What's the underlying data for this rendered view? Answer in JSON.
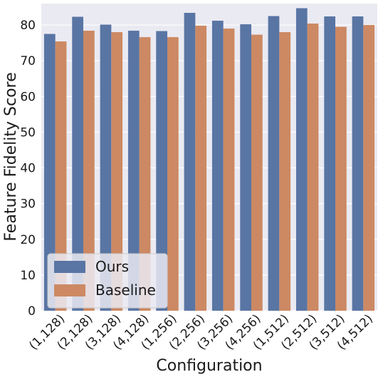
{
  "chart_data": {
    "type": "bar",
    "title": "",
    "xlabel": "Configuration",
    "ylabel": "Feature Fidelity Score",
    "ylim": [
      0,
      86
    ],
    "yticks": [
      0,
      10,
      20,
      30,
      40,
      50,
      60,
      70,
      80
    ],
    "grid": true,
    "legend_position": "bottom-left",
    "categories": [
      "(1,128)",
      "(2,128)",
      "(3,128)",
      "(4,128)",
      "(1,256)",
      "(2,256)",
      "(3,256)",
      "(4,256)",
      "(1,512)",
      "(2,512)",
      "(3,512)",
      "(4,512)"
    ],
    "series": [
      {
        "name": "Ours",
        "color": "#5975a4",
        "values": [
          77.5,
          82.3,
          80.1,
          78.4,
          78.3,
          83.4,
          81.2,
          80.2,
          82.5,
          84.7,
          82.4,
          82.4
        ]
      },
      {
        "name": "Baseline",
        "color": "#cc8963",
        "values": [
          75.4,
          78.4,
          78.0,
          76.6,
          76.6,
          79.8,
          79.0,
          77.3,
          78.0,
          80.4,
          79.5,
          80.0
        ]
      }
    ]
  }
}
